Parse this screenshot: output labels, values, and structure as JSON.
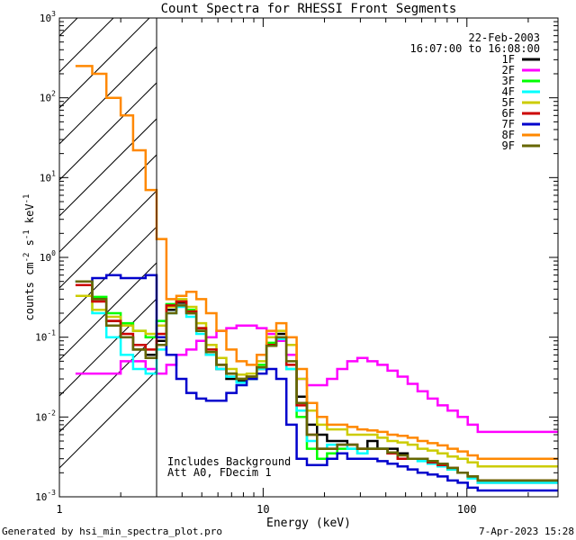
{
  "chart_data": {
    "type": "line",
    "title": "Count Spectra for RHESSI Front Segments",
    "xlabel": "Energy (keV)",
    "ylabel_parts": [
      "counts cm",
      "-2",
      " s",
      "-1",
      " keV",
      "-1"
    ],
    "xscale": "log",
    "yscale": "log",
    "xlim": [
      1,
      280
    ],
    "ylim": [
      0.001,
      1000
    ],
    "x_tick_labels": [
      "1",
      "10",
      "100"
    ],
    "y_tick_labels": [
      {
        "base": "10",
        "exp": "-3",
        "value": 0.001
      },
      {
        "base": "10",
        "exp": "-2",
        "value": 0.01
      },
      {
        "base": "10",
        "exp": "-1",
        "value": 0.1
      },
      {
        "base": "10",
        "exp": "0",
        "value": 1
      },
      {
        "base": "10",
        "exp": "1",
        "value": 10
      },
      {
        "base": "10",
        "exp": "2",
        "value": 100
      },
      {
        "base": "10",
        "exp": "3",
        "value": 1000
      }
    ],
    "legend_position": "top-right",
    "date": "22-Feb-2003",
    "time_range": "16:07:00 to 16:08:00",
    "attenuator_threshold_keV": 3,
    "annotations": [
      "Includes Background",
      "Att A0, FDecim 1"
    ],
    "series": [
      {
        "name": "1F",
        "color": "#000000",
        "values": [
          0.5,
          0.3,
          0.16,
          0.1,
          0.07,
          0.06,
          0.09,
          0.22,
          0.27,
          0.2,
          0.12,
          0.06,
          0.04,
          0.03,
          0.028,
          0.03,
          0.04,
          0.08,
          0.11,
          0.06,
          0.018,
          0.008,
          0.006,
          0.005,
          0.005,
          0.0045,
          0.004,
          0.005,
          0.004,
          0.004,
          0.0035,
          0.003,
          0.003,
          0.0028,
          0.0025,
          0.0022,
          0.002,
          0.0018,
          0.0015
        ]
      },
      {
        "name": "2F",
        "color": "#ff00ff",
        "values": [
          0.035,
          0.035,
          0.035,
          0.05,
          0.05,
          0.04,
          0.035,
          0.045,
          0.06,
          0.07,
          0.09,
          0.1,
          0.12,
          0.13,
          0.14,
          0.14,
          0.13,
          0.11,
          0.09,
          0.06,
          0.03,
          0.025,
          0.025,
          0.03,
          0.04,
          0.05,
          0.055,
          0.05,
          0.045,
          0.038,
          0.032,
          0.026,
          0.021,
          0.017,
          0.014,
          0.012,
          0.01,
          0.008,
          0.0065
        ]
      },
      {
        "name": "3F",
        "color": "#00ff00",
        "values": [
          0.5,
          0.32,
          0.2,
          0.15,
          0.12,
          0.1,
          0.16,
          0.26,
          0.28,
          0.22,
          0.13,
          0.07,
          0.045,
          0.035,
          0.03,
          0.032,
          0.045,
          0.085,
          0.1,
          0.04,
          0.01,
          0.004,
          0.003,
          0.0035,
          0.004,
          0.004,
          0.0035,
          0.004,
          0.004,
          0.0035,
          0.003,
          0.003,
          0.003,
          0.0028,
          0.0025,
          0.0022,
          0.002,
          0.0018,
          0.0016
        ]
      },
      {
        "name": "4F",
        "color": "#00ffff",
        "values": [
          0.5,
          0.2,
          0.1,
          0.06,
          0.04,
          0.035,
          0.07,
          0.2,
          0.24,
          0.18,
          0.11,
          0.06,
          0.04,
          0.032,
          0.027,
          0.03,
          0.04,
          0.08,
          0.095,
          0.04,
          0.012,
          0.005,
          0.004,
          0.0045,
          0.0045,
          0.004,
          0.0035,
          0.004,
          0.004,
          0.0035,
          0.003,
          0.003,
          0.0028,
          0.0026,
          0.0024,
          0.0022,
          0.002,
          0.0017,
          0.0015
        ]
      },
      {
        "name": "5F",
        "color": "#cccc00",
        "values": [
          0.33,
          0.22,
          0.18,
          0.14,
          0.12,
          0.11,
          0.14,
          0.24,
          0.3,
          0.24,
          0.15,
          0.08,
          0.055,
          0.04,
          0.034,
          0.035,
          0.05,
          0.1,
          0.12,
          0.08,
          0.03,
          0.012,
          0.008,
          0.007,
          0.007,
          0.006,
          0.006,
          0.006,
          0.0055,
          0.005,
          0.0048,
          0.0045,
          0.004,
          0.0038,
          0.0035,
          0.0032,
          0.003,
          0.0027,
          0.0024
        ]
      },
      {
        "name": "6F",
        "color": "#cc0000",
        "values": [
          0.45,
          0.28,
          0.16,
          0.11,
          0.08,
          0.07,
          0.11,
          0.25,
          0.28,
          0.21,
          0.13,
          0.07,
          0.045,
          0.035,
          0.03,
          0.032,
          0.042,
          0.08,
          0.1,
          0.045,
          0.014,
          0.006,
          0.004,
          0.004,
          0.0045,
          0.0045,
          0.004,
          0.004,
          0.004,
          0.0035,
          0.003,
          0.003,
          0.003,
          0.0027,
          0.0025,
          0.0023,
          0.002,
          0.0018,
          0.0016
        ]
      },
      {
        "name": "7F",
        "color": "#0000cc",
        "values": [
          0.5,
          0.55,
          0.6,
          0.55,
          0.55,
          0.6,
          0.1,
          0.06,
          0.03,
          0.02,
          0.017,
          0.016,
          0.016,
          0.02,
          0.025,
          0.03,
          0.035,
          0.04,
          0.03,
          0.008,
          0.003,
          0.0025,
          0.0025,
          0.003,
          0.0035,
          0.003,
          0.003,
          0.003,
          0.0028,
          0.0026,
          0.0024,
          0.0022,
          0.002,
          0.0019,
          0.0018,
          0.0016,
          0.0015,
          0.0013,
          0.0012
        ]
      },
      {
        "name": "8F",
        "color": "#ff8800",
        "values": [
          250,
          200,
          100,
          60,
          22,
          7,
          1.7,
          0.3,
          0.33,
          0.37,
          0.3,
          0.2,
          0.12,
          0.07,
          0.05,
          0.045,
          0.06,
          0.12,
          0.15,
          0.1,
          0.04,
          0.015,
          0.01,
          0.008,
          0.008,
          0.0075,
          0.007,
          0.0068,
          0.0065,
          0.006,
          0.0058,
          0.0055,
          0.005,
          0.0047,
          0.0044,
          0.004,
          0.0037,
          0.0033,
          0.003
        ]
      },
      {
        "name": "9F",
        "color": "#666600",
        "values": [
          0.5,
          0.3,
          0.14,
          0.1,
          0.07,
          0.055,
          0.08,
          0.2,
          0.25,
          0.2,
          0.12,
          0.065,
          0.045,
          0.035,
          0.03,
          0.032,
          0.042,
          0.078,
          0.1,
          0.05,
          0.015,
          0.006,
          0.004,
          0.004,
          0.0045,
          0.0045,
          0.004,
          0.004,
          0.004,
          0.0036,
          0.0033,
          0.003,
          0.003,
          0.0028,
          0.0026,
          0.0023,
          0.002,
          0.0018,
          0.0016
        ]
      }
    ],
    "energy_bin_edges_keV": [
      1.2,
      1.45,
      1.7,
      2.0,
      2.3,
      2.65,
      3.0,
      3.35,
      3.75,
      4.2,
      4.7,
      5.25,
      5.9,
      6.6,
      7.4,
      8.3,
      9.3,
      10.4,
      11.6,
      13.0,
      14.6,
      16.4,
      18.4,
      20.6,
      23.1,
      25.9,
      29.0,
      32.5,
      36.4,
      40.8,
      45.7,
      51.2,
      57.3,
      64.2,
      71.9,
      80.5,
      90.2,
      101.0,
      113.0,
      280.0
    ]
  },
  "footer": {
    "generator": "Generated by hsi_min_spectra_plot.pro",
    "timestamp": "7-Apr-2023 15:28"
  }
}
